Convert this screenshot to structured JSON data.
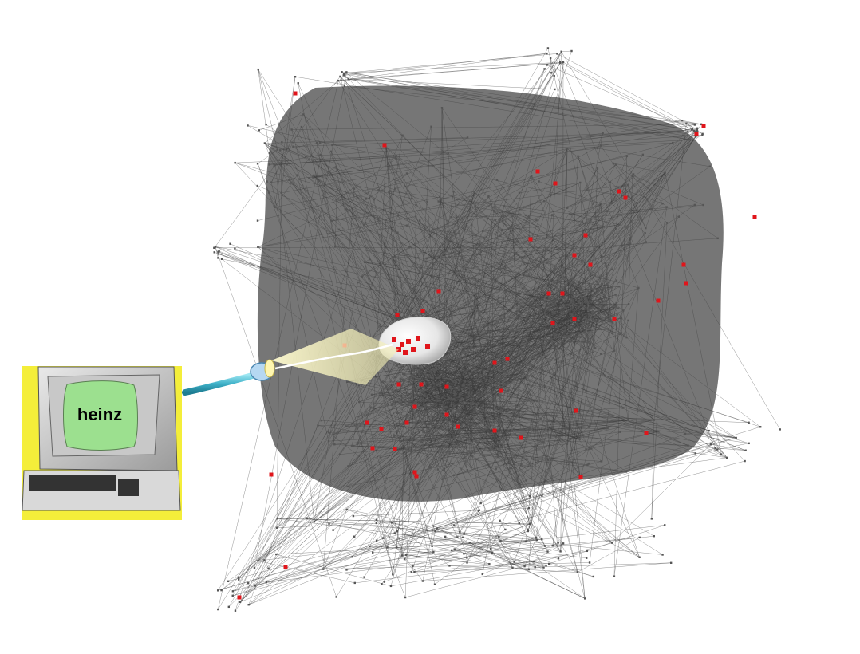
{
  "screen": {
    "label": "heinz"
  },
  "colors": {
    "background": "#ffffff",
    "blob": "#6f6f6f",
    "edge": "#3a3a3a",
    "node": "#555555",
    "highlight": "#e0151b",
    "computer_backdrop": "#f4ee3a",
    "screen": "#9ce08f",
    "beam": "#f6f2b8",
    "cable": "#3fb2c9"
  },
  "icons": {
    "computer": "retro-computer-icon",
    "beam": "spotlight-beam",
    "lens": "magnifier-lens"
  }
}
